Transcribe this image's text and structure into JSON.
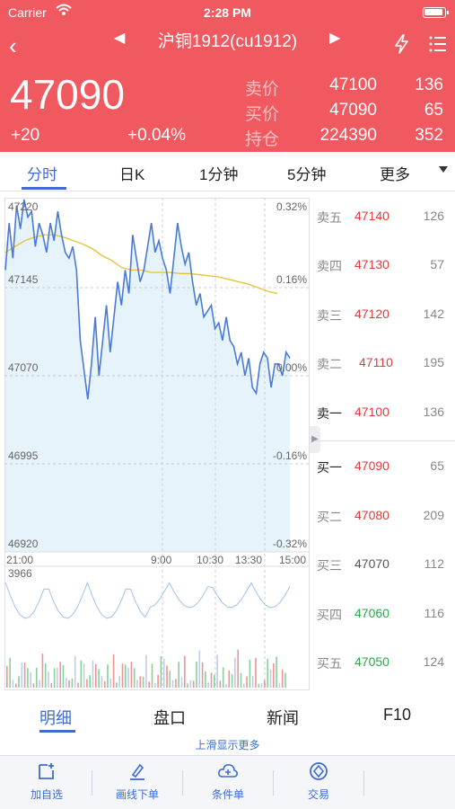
{
  "status_bar": {
    "carrier": "Carrier",
    "time": "2:28 PM"
  },
  "header": {
    "title": "沪铜1912(cu1912)",
    "last_price": "47090",
    "change": "+20",
    "change_pct": "+0.04%",
    "quotes": [
      {
        "label": "卖价",
        "value": "47100",
        "qty": "136"
      },
      {
        "label": "买价",
        "value": "47090",
        "qty": "65"
      },
      {
        "label": "持仓",
        "value": "224390",
        "qty": "352"
      }
    ],
    "bg_color": "#f0595f"
  },
  "period_tabs": [
    "分时",
    "日K",
    "1分钟",
    "5分钟",
    "更多"
  ],
  "chart_data": {
    "type": "line",
    "y_ticks": [
      "47220",
      "47145",
      "47070",
      "46995",
      "46920"
    ],
    "pct_ticks": [
      "0.32%",
      "0.16%",
      "0.00%",
      "-0.16%",
      "-0.32%"
    ],
    "x_ticks": [
      "21:00",
      "9:00",
      "10:30",
      "13:30",
      "15:00"
    ],
    "ylim": [
      46920,
      47220
    ],
    "price_series": [
      47160,
      47200,
      47170,
      47215,
      47195,
      47220,
      47205,
      47210,
      47180,
      47200,
      47190,
      47175,
      47200,
      47185,
      47210,
      47190,
      47175,
      47170,
      47180,
      47160,
      47100,
      47075,
      47050,
      47080,
      47120,
      47070,
      47100,
      47130,
      47090,
      47120,
      47150,
      47130,
      47160,
      47140,
      47190,
      47170,
      47150,
      47160,
      47180,
      47200,
      47175,
      47185,
      47170,
      47160,
      47140,
      47170,
      47200,
      47180,
      47165,
      47175,
      47150,
      47130,
      47140,
      47120,
      47125,
      47130,
      47110,
      47115,
      47100,
      47120,
      47100,
      47095,
      47080,
      47090,
      47070,
      47085,
      47060,
      47055,
      47080,
      47090,
      47085,
      47060,
      47080,
      47080,
      47070,
      47090,
      47085
    ],
    "avg_series": [
      47175,
      47180,
      47185,
      47188,
      47190,
      47190,
      47188,
      47185,
      47182,
      47178,
      47172,
      47168,
      47162,
      47160,
      47160,
      47158,
      47158,
      47158,
      47157,
      47157,
      47156,
      47155,
      47154,
      47152,
      47150,
      47148,
      47145,
      47142,
      47140
    ],
    "volume_label": "3966",
    "line_color": "#4a7ad8",
    "avg_color": "#e6c43a"
  },
  "order_book": {
    "asks": [
      {
        "label": "卖五",
        "price": "47140",
        "qty": "126"
      },
      {
        "label": "卖四",
        "price": "47130",
        "qty": "57"
      },
      {
        "label": "卖三",
        "price": "47120",
        "qty": "142"
      },
      {
        "label": "卖二",
        "price": "47110",
        "qty": "195"
      },
      {
        "label": "卖一",
        "price": "47100",
        "qty": "136"
      }
    ],
    "bids": [
      {
        "label": "买一",
        "price": "47090",
        "qty": "65"
      },
      {
        "label": "买二",
        "price": "47080",
        "qty": "209"
      },
      {
        "label": "买三",
        "price": "47070",
        "qty": "112"
      },
      {
        "label": "买四",
        "price": "47060",
        "qty": "116"
      },
      {
        "label": "买五",
        "price": "47050",
        "qty": "124"
      }
    ],
    "up_color": "#e23b3b",
    "down_color": "#2aa84a",
    "flat_color": "#555555"
  },
  "bottom_tabs": [
    "明细",
    "盘口",
    "新闻",
    "F10"
  ],
  "swipe_hint": "上滑显示更多",
  "toolbar": [
    {
      "label": "加自选",
      "icon": "add-watchlist-icon"
    },
    {
      "label": "画线下单",
      "icon": "draw-line-icon"
    },
    {
      "label": "条件单",
      "icon": "cloud-condition-icon"
    },
    {
      "label": "交易",
      "icon": "trade-icon"
    }
  ]
}
